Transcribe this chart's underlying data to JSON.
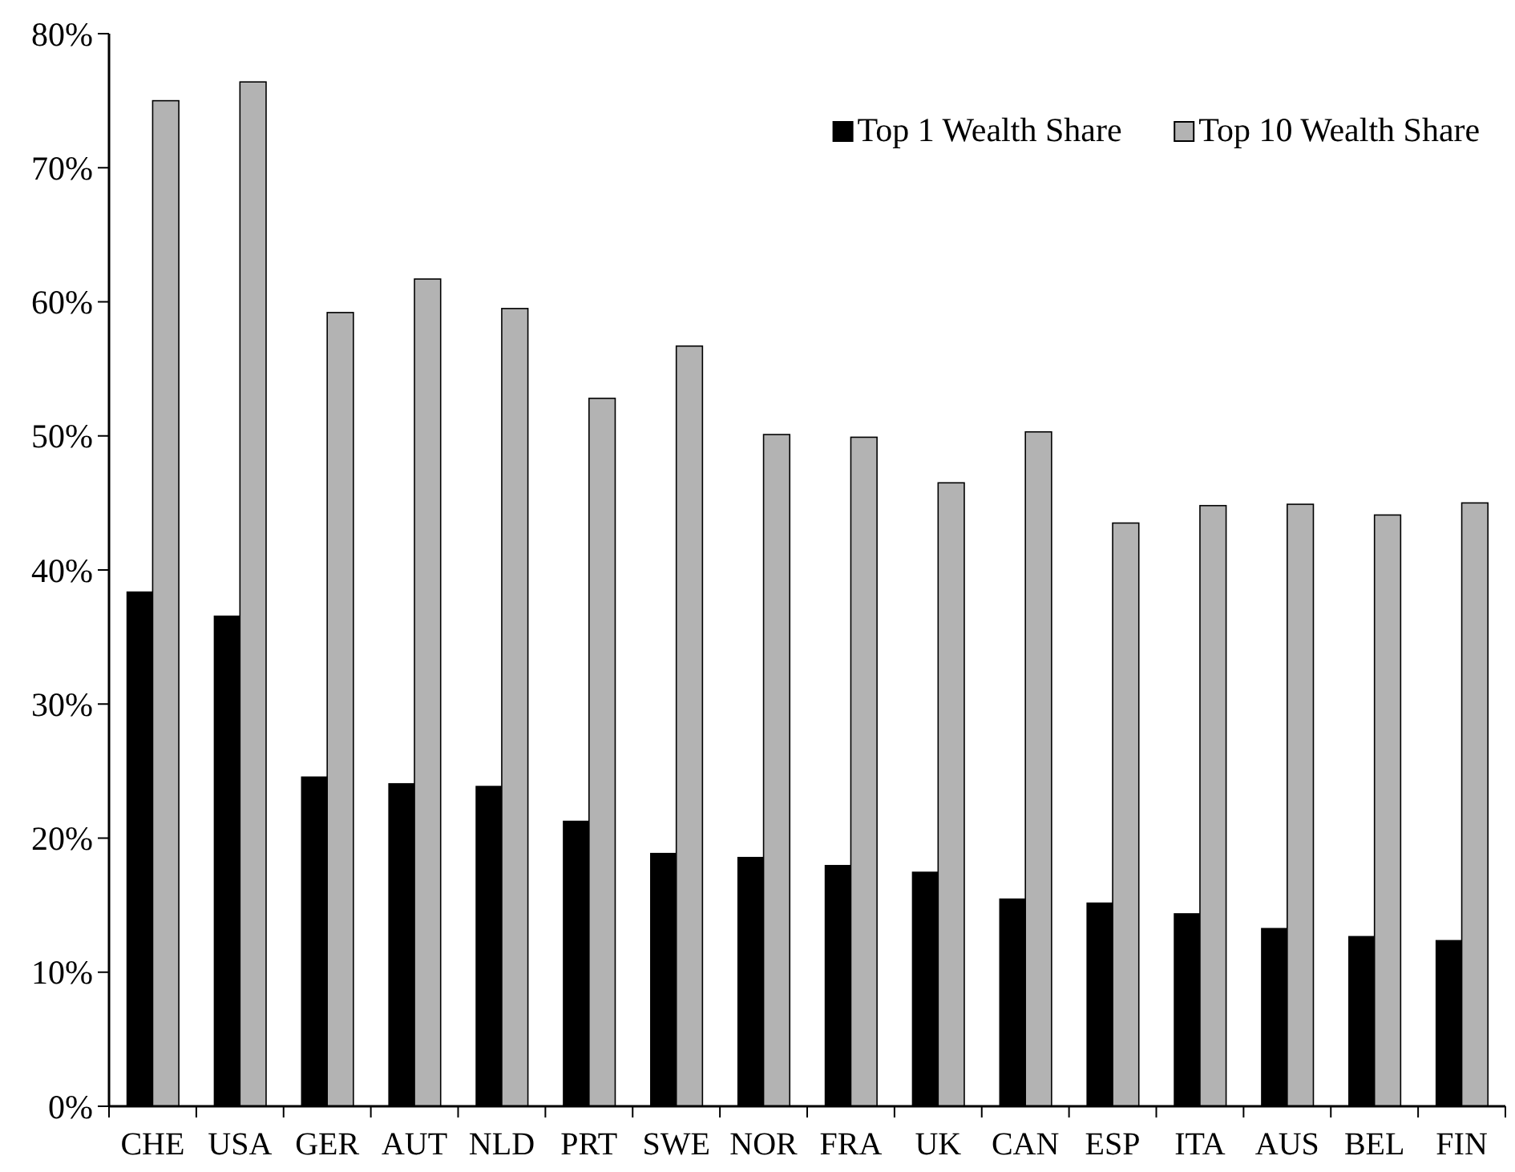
{
  "chart_data": {
    "type": "bar",
    "categories": [
      "CHE",
      "USA",
      "GER",
      "AUT",
      "NLD",
      "PRT",
      "SWE",
      "NOR",
      "FRA",
      "UK",
      "CAN",
      "ESP",
      "ITA",
      "AUS",
      "BEL",
      "FIN"
    ],
    "series": [
      {
        "name": "Top 1 Wealth Share",
        "color": "#000000",
        "values": [
          38.4,
          36.6,
          24.6,
          24.1,
          23.9,
          21.3,
          18.9,
          18.6,
          18.0,
          17.5,
          15.5,
          15.2,
          14.4,
          13.3,
          12.7,
          12.4
        ]
      },
      {
        "name": "Top 10 Wealth Share",
        "color": "#b3b3b3",
        "values": [
          75.0,
          76.4,
          59.2,
          61.7,
          59.5,
          52.8,
          56.7,
          50.1,
          49.9,
          46.5,
          50.3,
          43.5,
          44.8,
          44.9,
          44.1,
          45.0
        ]
      }
    ],
    "ylim": [
      0,
      80
    ],
    "yticks": [
      {
        "value": 0,
        "label": "0%"
      },
      {
        "value": 10,
        "label": "10%"
      },
      {
        "value": 20,
        "label": "20%"
      },
      {
        "value": 30,
        "label": "30%"
      },
      {
        "value": 40,
        "label": "40%"
      },
      {
        "value": 50,
        "label": "50%"
      },
      {
        "value": 60,
        "label": "60%"
      },
      {
        "value": 70,
        "label": "70%"
      },
      {
        "value": 80,
        "label": "80%"
      }
    ],
    "grid": false,
    "legend": "top right"
  }
}
